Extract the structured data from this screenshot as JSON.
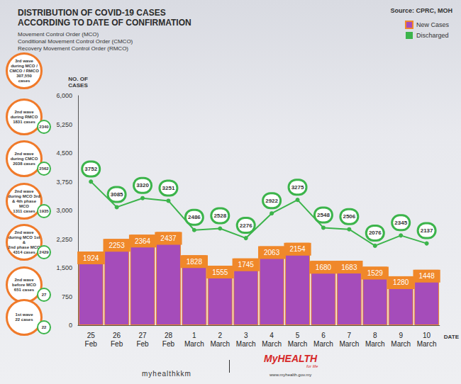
{
  "chart_data": {
    "type": "bar",
    "title": "DISTRIBUTION OF COVID-19 CASES\nACCORDING TO DATE OF CONFIRMATION",
    "subtitle": "Movement Control Order (MCO)\nConditional Movement Control Order (CMCO)\nRecovery Movement Control Order (RMCO)",
    "source": "Source: CPRC, MOH",
    "ylabel": "NO. OF\nCASES",
    "xlabel": "DATE",
    "categories": [
      "25 Feb",
      "26 Feb",
      "27 Feb",
      "28 Feb",
      "1 March",
      "2 March",
      "3 March",
      "4 March",
      "5 March",
      "6 March",
      "7 March",
      "8 March",
      "9 March",
      "10 March"
    ],
    "series": [
      {
        "name": "New Cases",
        "type": "bar",
        "color": "#a54cba",
        "values": [
          1924,
          2253,
          2364,
          2437,
          1828,
          1555,
          1745,
          2063,
          2154,
          1680,
          1683,
          1529,
          1280,
          1448
        ]
      },
      {
        "name": "Discharged",
        "type": "line",
        "color": "#3cb44b",
        "values": [
          3752,
          3085,
          3320,
          3251,
          2486,
          2528,
          2276,
          2922,
          3275,
          2548,
          2506,
          2076,
          2345,
          2137
        ]
      }
    ],
    "ylim": [
      0,
      6000
    ],
    "yticks": [
      0,
      750,
      1500,
      2250,
      3000,
      3750,
      4500,
      5250,
      6000
    ],
    "grid": false,
    "legend": "top-right",
    "data_labels": true,
    "annotations": [
      {
        "text": "3rd wave\nduring MCO /\nCMCO / RMCO\n307,550\ncases",
        "discharged": null
      },
      {
        "text": "2nd wave\nduring RMCO\n1831 cases",
        "discharged": 2340
      },
      {
        "text": "2nd wave\nduring CMCO\n2038 cases",
        "discharged": 2562
      },
      {
        "text": "2nd wave\nduring MCO 3rd\n& 4th phase MCO\n1311 cases",
        "discharged": 1935
      },
      {
        "text": "2nd wave\nduring MCO 1st &\n2nd phase MCO\n4314 cases",
        "discharged": 2429
      },
      {
        "text": "2nd wave\nbefore MCO\n651 cases",
        "discharged": 27
      },
      {
        "text": "1st wave\n22 cases",
        "discharged": 22
      }
    ],
    "footer": [
      "myhealthkkm",
      "MyHEALTH",
      "for life",
      "www.myhealth.gov.my"
    ]
  }
}
